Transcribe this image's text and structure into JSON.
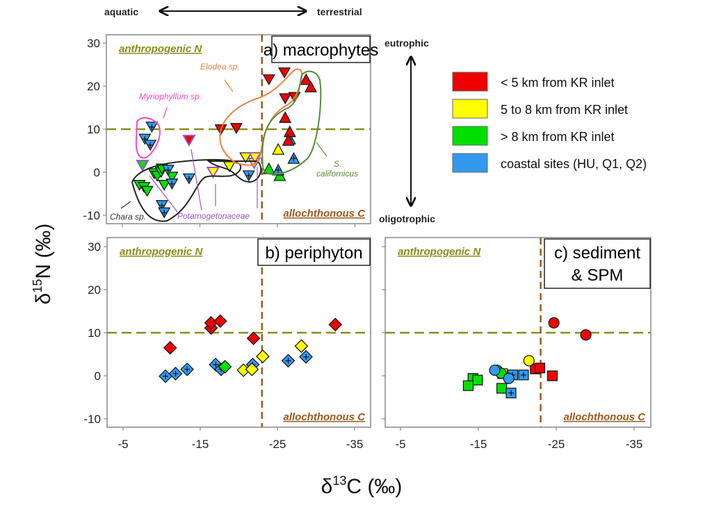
{
  "chart_data": {
    "type": "scatter",
    "xlabel": "δ13C (‰)",
    "ylabel": "δ15N (‰)",
    "xlabel_parts": {
      "prefix": "δ",
      "sup": "13",
      "suffix": "C (‰)"
    },
    "ylabel_parts": {
      "prefix": "δ",
      "sup": "15",
      "suffix": "N (‰)"
    },
    "x_axis": {
      "direction": "reversed",
      "ticks": [
        -5,
        -15,
        -25,
        -35
      ],
      "tick_labels": [
        "-5",
        "-15",
        "-25",
        "-35"
      ],
      "range": [
        -3,
        -37
      ]
    },
    "y_axis": {
      "ticks": [
        30,
        20,
        10,
        0,
        -10
      ],
      "tick_labels": [
        "30",
        "20",
        "10",
        "0",
        "-10"
      ],
      "range": [
        -12,
        32
      ]
    },
    "top_gradient": {
      "left": "aquatic",
      "right": "terrestrial"
    },
    "side_gradient": {
      "top": "eutrophic",
      "bottom": "oligotrophic"
    },
    "thresholds": {
      "n15_anthropogenic": 10,
      "c13_allochthonous": -23
    },
    "corner_labels": {
      "top_left": "anthropogenic N",
      "bottom_right": "allochthonous C"
    },
    "grid": false,
    "legend": {
      "placement": "right",
      "entries": [
        {
          "key": "red",
          "label": "< 5 km from KR inlet",
          "color": "#ee0000"
        },
        {
          "key": "yellow",
          "label": "5 to 8 km from KR inlet",
          "color": "#ffff00"
        },
        {
          "key": "green",
          "label": "> 8 km from KR inlet",
          "color": "#00e000"
        },
        {
          "key": "blue",
          "label": "coastal sites (HU, Q1, Q2)",
          "color": "#3399ee"
        }
      ]
    },
    "panels": [
      {
        "id": "a",
        "title": "a) macrophytes",
        "annotations": [
          {
            "text": "Elodea sp.",
            "color": "#f08040"
          },
          {
            "text": "Myriophyllum sp.",
            "color": "#ff44cc"
          },
          {
            "text": "Potamogetonaceae",
            "color": "#9955cc"
          },
          {
            "text": "Chara sp.",
            "color": "#333333"
          },
          {
            "text": "S.",
            "color": "#5a8a3a"
          },
          {
            "text": "californicus",
            "color": "#5a8a3a"
          }
        ],
        "series": [
          {
            "name": "Myriophyllum sp.",
            "marker": "triangle-down",
            "points": [
              {
                "x": -8.8,
                "y": 10.5,
                "c": "blue"
              },
              {
                "x": -7.9,
                "y": 7.7,
                "c": "blue"
              },
              {
                "x": -8.6,
                "y": 6.3,
                "c": "blue"
              }
            ]
          },
          {
            "name": "Chara sp.",
            "marker": "triangle-down",
            "points": [
              {
                "x": -7.2,
                "y": -3.0,
                "c": "green"
              },
              {
                "x": -7.8,
                "y": -3.5,
                "c": "green"
              },
              {
                "x": -8.2,
                "y": -4.4,
                "c": "green"
              },
              {
                "x": -9.1,
                "y": -0.3,
                "c": "green"
              },
              {
                "x": -9.5,
                "y": -0.9,
                "c": "green"
              },
              {
                "x": -10.0,
                "y": 0.0,
                "c": "green"
              },
              {
                "x": -10.1,
                "y": 0.8,
                "c": "green"
              },
              {
                "x": -10.4,
                "y": -3.0,
                "c": "green"
              },
              {
                "x": -11.4,
                "y": -1.1,
                "c": "green"
              },
              {
                "x": -10.9,
                "y": 0.5,
                "c": "blue"
              },
              {
                "x": -11.4,
                "y": -2.7,
                "c": "blue"
              },
              {
                "x": -13.6,
                "y": -1.5,
                "c": "blue"
              },
              {
                "x": -21.3,
                "y": -0.8,
                "c": "blue"
              },
              {
                "x": -10.1,
                "y": -7.7,
                "c": "blue"
              },
              {
                "x": -10.4,
                "y": -9.4,
                "c": "blue"
              },
              {
                "x": -18.8,
                "y": 1.3,
                "c": "yellow"
              },
              {
                "x": -20.9,
                "y": 3.4,
                "c": "yellow"
              }
            ]
          },
          {
            "name": "Potamogetonaceae",
            "marker": "triangle-down",
            "outline": "#9955cc",
            "points": [
              {
                "x": -7.6,
                "y": 1.6,
                "c": "green"
              },
              {
                "x": -13.6,
                "y": 7.4,
                "c": "red"
              },
              {
                "x": -16.7,
                "y": 0.0,
                "c": "yellow"
              },
              {
                "x": -22.0,
                "y": 2.1,
                "c": "yellow"
              },
              {
                "x": -22.1,
                "y": 3.4,
                "c": "yellow"
              }
            ]
          },
          {
            "name": "Elodea sp.",
            "marker": "triangle-down",
            "points": [
              {
                "x": -17.7,
                "y": 9.9,
                "c": "red"
              },
              {
                "x": -19.7,
                "y": 10.2,
                "c": "red"
              },
              {
                "x": -23.9,
                "y": 21.5,
                "c": "red"
              },
              {
                "x": -25.9,
                "y": 23.1,
                "c": "red"
              },
              {
                "x": -26.0,
                "y": 17.1,
                "c": "red"
              },
              {
                "x": -27.2,
                "y": 17.4,
                "c": "red"
              }
            ]
          },
          {
            "name": "S. californicus",
            "marker": "triangle-up",
            "points": [
              {
                "x": -28.7,
                "y": 21.5,
                "c": "red"
              },
              {
                "x": -29.3,
                "y": 19.8,
                "c": "red"
              },
              {
                "x": -26.0,
                "y": 12.7,
                "c": "red"
              },
              {
                "x": -26.6,
                "y": 7.7,
                "c": "blue"
              },
              {
                "x": -26.6,
                "y": 9.4,
                "c": "red"
              },
              {
                "x": -26.4,
                "y": 7.4,
                "c": "red"
              },
              {
                "x": -25.1,
                "y": 5.3,
                "c": "yellow"
              },
              {
                "x": -23.9,
                "y": 0.8,
                "c": "green"
              },
              {
                "x": -25.3,
                "y": -0.8,
                "c": "green"
              },
              {
                "x": -25.1,
                "y": 0.5,
                "c": "blue"
              },
              {
                "x": -27.1,
                "y": 3.2,
                "c": "blue"
              }
            ]
          }
        ]
      },
      {
        "id": "b",
        "title": "b) periphyton",
        "series": [
          {
            "name": "periphyton",
            "marker": "diamond",
            "points": [
              {
                "x": -11.1,
                "y": 6.5,
                "c": "red"
              },
              {
                "x": -16.4,
                "y": 11.1,
                "c": "red"
              },
              {
                "x": -16.4,
                "y": 12.3,
                "c": "red"
              },
              {
                "x": -17.6,
                "y": 12.7,
                "c": "red"
              },
              {
                "x": -21.9,
                "y": 8.7,
                "c": "red"
              },
              {
                "x": -32.5,
                "y": 11.9,
                "c": "red"
              },
              {
                "x": -10.5,
                "y": -0.1,
                "c": "blue"
              },
              {
                "x": -11.8,
                "y": 0.5,
                "c": "blue"
              },
              {
                "x": -13.3,
                "y": 1.5,
                "c": "blue"
              },
              {
                "x": -17.0,
                "y": 2.6,
                "c": "blue"
              },
              {
                "x": -17.7,
                "y": 1.5,
                "c": "blue"
              },
              {
                "x": -21.8,
                "y": 2.6,
                "c": "blue"
              },
              {
                "x": -26.4,
                "y": 3.5,
                "c": "blue"
              },
              {
                "x": -28.7,
                "y": 4.4,
                "c": "blue"
              },
              {
                "x": -18.2,
                "y": 2.1,
                "c": "green"
              },
              {
                "x": -20.6,
                "y": 1.3,
                "c": "yellow"
              },
              {
                "x": -21.7,
                "y": 1.5,
                "c": "yellow"
              },
              {
                "x": -23.1,
                "y": 4.5,
                "c": "yellow"
              },
              {
                "x": -28.1,
                "y": 6.9,
                "c": "yellow"
              }
            ]
          }
        ]
      },
      {
        "id": "c",
        "title": "c) sediment",
        "title_line2": "& SPM",
        "series": [
          {
            "name": "sediment",
            "marker": "square",
            "points": [
              {
                "x": -22.3,
                "y": 1.6,
                "c": "red"
              },
              {
                "x": -22.9,
                "y": 1.8,
                "c": "red"
              },
              {
                "x": -24.5,
                "y": 0.0,
                "c": "red"
              },
              {
                "x": -14.3,
                "y": -0.6,
                "c": "green"
              },
              {
                "x": -14.9,
                "y": -1.0,
                "c": "green"
              },
              {
                "x": -13.7,
                "y": -2.3,
                "c": "green"
              },
              {
                "x": -18.0,
                "y": -2.9,
                "c": "green"
              },
              {
                "x": -19.2,
                "y": -4.0,
                "c": "blue"
              },
              {
                "x": -19.4,
                "y": 0.2,
                "c": "blue"
              },
              {
                "x": -20.8,
                "y": 0.2,
                "c": "blue"
              },
              {
                "x": -18.1,
                "y": 0.5,
                "c": "yellow"
              }
            ]
          },
          {
            "name": "SPM",
            "marker": "circle",
            "points": [
              {
                "x": -24.7,
                "y": 12.3,
                "c": "red"
              },
              {
                "x": -28.8,
                "y": 9.5,
                "c": "red"
              },
              {
                "x": -21.5,
                "y": 3.5,
                "c": "yellow"
              },
              {
                "x": -17.4,
                "y": 1.3,
                "c": "green"
              },
              {
                "x": -17.9,
                "y": 0.6,
                "c": "green"
              },
              {
                "x": -17.1,
                "y": 1.3,
                "c": "blue"
              },
              {
                "x": -18.9,
                "y": -0.6,
                "c": "blue"
              }
            ]
          }
        ]
      }
    ]
  }
}
